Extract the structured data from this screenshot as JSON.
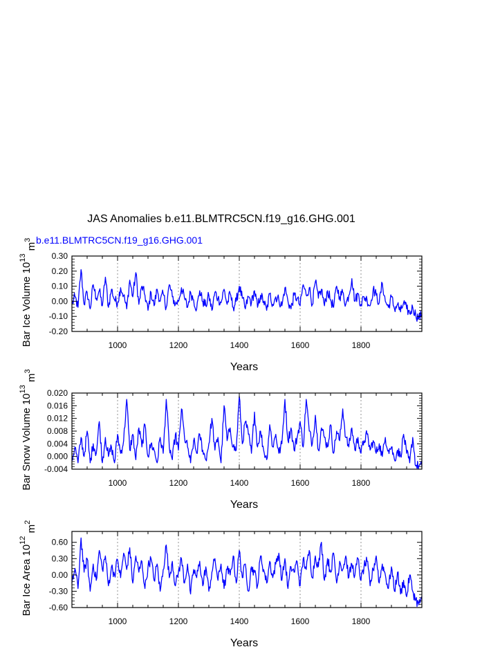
{
  "title": "JAS Anomalies b.e11.BLMTRC5CN.f19_g16.GHG.001",
  "chart_data": [
    {
      "type": "line",
      "series_label": "b.e11.BLMTRC5CN.f19_g16.GHG.001",
      "series_color": "#0000ff",
      "ylabel": "Bar Ice Volume 10",
      "ylabel_exp": "13",
      "ylabel_unit": "m",
      "ylabel_unit_exp": "3",
      "xlabel": "Years",
      "xlim": [
        850,
        2000
      ],
      "ylim": [
        -0.2,
        0.3
      ],
      "xticks": [
        1000,
        1200,
        1400,
        1600,
        1800
      ],
      "xtick_labels": [
        "1000",
        "1200",
        "1400",
        "1600",
        "1800"
      ],
      "yticks": [
        -0.2,
        -0.1,
        0.0,
        0.1,
        0.2,
        0.3
      ],
      "ytick_labels": [
        "-0.20",
        "-0.10",
        "0.00",
        "0.10",
        "0.20",
        "0.30"
      ],
      "grid": "dashed vertical at x ticks",
      "series": [
        {
          "x": [
            850,
            860,
            870,
            880,
            890,
            900,
            910,
            920,
            930,
            940,
            950,
            960,
            970,
            980,
            990,
            1000,
            1010,
            1020,
            1030,
            1040,
            1050,
            1060,
            1070,
            1080,
            1090,
            1100,
            1110,
            1120,
            1130,
            1140,
            1150,
            1160,
            1170,
            1180,
            1190,
            1200,
            1210,
            1220,
            1230,
            1240,
            1250,
            1260,
            1270,
            1280,
            1290,
            1300,
            1310,
            1320,
            1330,
            1340,
            1350,
            1360,
            1370,
            1380,
            1390,
            1400,
            1410,
            1420,
            1430,
            1440,
            1450,
            1460,
            1470,
            1480,
            1490,
            1500,
            1510,
            1520,
            1530,
            1540,
            1550,
            1560,
            1570,
            1580,
            1590,
            1600,
            1610,
            1620,
            1630,
            1640,
            1650,
            1660,
            1670,
            1680,
            1690,
            1700,
            1710,
            1720,
            1730,
            1740,
            1750,
            1760,
            1770,
            1780,
            1790,
            1800,
            1810,
            1820,
            1830,
            1840,
            1850,
            1860,
            1870,
            1880,
            1890,
            1900,
            1910,
            1920,
            1930,
            1940,
            1950,
            1960,
            1970,
            1980,
            1990,
            2000
          ],
          "y": [
            -0.02,
            0.03,
            -0.04,
            0.21,
            -0.02,
            0.06,
            -0.05,
            0.11,
            0.02,
            0.07,
            -0.03,
            0.16,
            -0.04,
            0.08,
            0.01,
            -0.01,
            0.09,
            0.04,
            -0.05,
            0.14,
            0.03,
            0.19,
            -0.02,
            0.1,
            0.04,
            -0.06,
            0.06,
            -0.03,
            0.08,
            0.0,
            0.05,
            -0.04,
            0.11,
            0.03,
            -0.02,
            0.0,
            0.09,
            0.02,
            -0.04,
            0.06,
            0.01,
            -0.05,
            0.07,
            0.0,
            -0.03,
            0.04,
            -0.06,
            0.06,
            0.02,
            -0.01,
            0.08,
            -0.02,
            0.05,
            -0.04,
            0.0,
            0.1,
            0.02,
            -0.05,
            0.03,
            -0.01,
            0.07,
            -0.04,
            0.04,
            0.0,
            -0.06,
            0.05,
            -0.02,
            0.03,
            0.01,
            -0.03,
            0.09,
            0.0,
            -0.05,
            0.04,
            0.02,
            -0.03,
            0.11,
            0.04,
            0.09,
            -0.02,
            0.13,
            0.02,
            0.08,
            -0.03,
            0.07,
            0.01,
            -0.04,
            0.1,
            0.03,
            0.06,
            -0.02,
            0.04,
            0.15,
            0.0,
            0.05,
            -0.02,
            0.03,
            0.01,
            -0.03,
            0.08,
            0.04,
            -0.01,
            0.12,
            0.0,
            -0.04,
            0.03,
            -0.05,
            -0.02,
            -0.07,
            -0.01,
            -0.05,
            -0.08,
            -0.04,
            -0.09,
            -0.11,
            -0.09
          ]
        }
      ]
    },
    {
      "type": "line",
      "series_color": "#0000ff",
      "ylabel": "Bar Snow Volume 10",
      "ylabel_exp": "13",
      "ylabel_unit": "m",
      "ylabel_unit_exp": "3",
      "xlabel": "Years",
      "xlim": [
        850,
        2000
      ],
      "ylim": [
        -0.004,
        0.02
      ],
      "xticks": [
        1000,
        1200,
        1400,
        1600,
        1800
      ],
      "xtick_labels": [
        "1000",
        "1200",
        "1400",
        "1600",
        "1800"
      ],
      "yticks": [
        -0.004,
        0.0,
        0.004,
        0.008,
        0.012,
        0.016,
        0.02
      ],
      "ytick_labels": [
        "-0.004",
        "0.000",
        "0.004",
        "0.008",
        "0.012",
        "0.016",
        "0.020"
      ],
      "grid": "dashed vertical at x ticks",
      "series": [
        {
          "x": [
            850,
            860,
            870,
            880,
            890,
            900,
            910,
            920,
            930,
            940,
            950,
            960,
            970,
            980,
            990,
            1000,
            1010,
            1020,
            1030,
            1040,
            1050,
            1060,
            1070,
            1080,
            1090,
            1100,
            1110,
            1120,
            1130,
            1140,
            1150,
            1160,
            1170,
            1180,
            1190,
            1200,
            1210,
            1220,
            1230,
            1240,
            1250,
            1260,
            1270,
            1280,
            1290,
            1300,
            1310,
            1320,
            1330,
            1340,
            1350,
            1360,
            1370,
            1380,
            1390,
            1400,
            1410,
            1420,
            1430,
            1440,
            1450,
            1460,
            1470,
            1480,
            1490,
            1500,
            1510,
            1520,
            1530,
            1540,
            1550,
            1560,
            1570,
            1580,
            1590,
            1600,
            1610,
            1620,
            1630,
            1640,
            1650,
            1660,
            1670,
            1680,
            1690,
            1700,
            1710,
            1720,
            1730,
            1740,
            1750,
            1760,
            1770,
            1780,
            1790,
            1800,
            1810,
            1820,
            1830,
            1840,
            1850,
            1860,
            1870,
            1880,
            1890,
            1900,
            1910,
            1920,
            1930,
            1940,
            1950,
            1960,
            1970,
            1980,
            1990,
            2000
          ],
          "y": [
            -0.001,
            0.003,
            -0.002,
            0.006,
            0.0,
            0.008,
            -0.002,
            0.004,
            0.001,
            0.011,
            -0.002,
            0.006,
            0.0,
            0.003,
            -0.002,
            0.007,
            0.001,
            0.005,
            0.018,
            0.002,
            0.007,
            -0.001,
            0.009,
            0.003,
            0.01,
            0.0,
            0.004,
            0.002,
            -0.002,
            0.006,
            0.001,
            0.018,
            0.003,
            -0.001,
            0.007,
            0.002,
            0.015,
            0.006,
            0.003,
            -0.002,
            0.005,
            0.001,
            0.007,
            0.002,
            -0.001,
            0.004,
            0.012,
            0.002,
            0.006,
            -0.002,
            0.016,
            0.005,
            0.009,
            0.003,
            0.002,
            0.019,
            0.004,
            0.011,
            0.007,
            0.001,
            0.014,
            0.003,
            0.008,
            0.002,
            -0.001,
            0.01,
            0.003,
            0.007,
            0.001,
            0.004,
            0.018,
            0.005,
            0.009,
            0.002,
            0.006,
            0.011,
            0.003,
            0.018,
            0.008,
            0.004,
            0.013,
            0.002,
            0.009,
            0.006,
            0.003,
            0.01,
            0.001,
            0.008,
            0.005,
            0.015,
            0.006,
            0.003,
            0.009,
            0.002,
            0.006,
            0.001,
            0.005,
            0.007,
            0.002,
            0.005,
            0.001,
            0.004,
            0.0,
            0.006,
            0.002,
            0.003,
            -0.001,
            0.002,
            0.0,
            0.007,
            0.001,
            -0.002,
            0.006,
            -0.003,
            -0.003,
            -0.003
          ]
        }
      ]
    },
    {
      "type": "line",
      "series_color": "#0000ff",
      "ylabel": "Bar Ice Area 10",
      "ylabel_exp": "12",
      "ylabel_unit": "m",
      "ylabel_unit_exp": "2",
      "xlabel": "Years",
      "xlim": [
        850,
        2000
      ],
      "ylim": [
        -0.6,
        0.8
      ],
      "xticks": [
        1000,
        1200,
        1400,
        1600,
        1800
      ],
      "xtick_labels": [
        "1000",
        "1200",
        "1400",
        "1600",
        "1800"
      ],
      "yticks": [
        -0.6,
        -0.3,
        0.0,
        0.3,
        0.6
      ],
      "ytick_labels": [
        "-0.60",
        "-0.30",
        "0.00",
        "0.30",
        "0.60"
      ],
      "grid": "dashed vertical at x ticks",
      "series": [
        {
          "x": [
            850,
            860,
            870,
            880,
            890,
            900,
            910,
            920,
            930,
            940,
            950,
            960,
            970,
            980,
            990,
            1000,
            1010,
            1020,
            1030,
            1040,
            1050,
            1060,
            1070,
            1080,
            1090,
            1100,
            1110,
            1120,
            1130,
            1140,
            1150,
            1160,
            1170,
            1180,
            1190,
            1200,
            1210,
            1220,
            1230,
            1240,
            1250,
            1260,
            1270,
            1280,
            1290,
            1300,
            1310,
            1320,
            1330,
            1340,
            1350,
            1360,
            1370,
            1380,
            1390,
            1400,
            1410,
            1420,
            1430,
            1440,
            1450,
            1460,
            1470,
            1480,
            1490,
            1500,
            1510,
            1520,
            1530,
            1540,
            1550,
            1560,
            1570,
            1580,
            1590,
            1600,
            1610,
            1620,
            1630,
            1640,
            1650,
            1660,
            1670,
            1680,
            1690,
            1700,
            1710,
            1720,
            1730,
            1740,
            1750,
            1760,
            1770,
            1780,
            1790,
            1800,
            1810,
            1820,
            1830,
            1840,
            1850,
            1860,
            1870,
            1880,
            1890,
            1900,
            1910,
            1920,
            1930,
            1940,
            1950,
            1960,
            1970,
            1980,
            1990,
            2000
          ],
          "y": [
            -0.15,
            0.12,
            -0.25,
            0.68,
            0.05,
            0.3,
            -0.3,
            0.2,
            -0.1,
            0.45,
            0.1,
            0.35,
            -0.2,
            0.15,
            0.0,
            0.28,
            -0.05,
            0.4,
            0.1,
            0.5,
            -0.15,
            0.35,
            0.05,
            0.25,
            -0.25,
            0.15,
            0.3,
            -0.1,
            0.2,
            -0.3,
            0.1,
            0.55,
            -0.05,
            0.25,
            -0.2,
            0.05,
            0.3,
            -0.15,
            0.2,
            -0.35,
            0.1,
            -0.05,
            0.25,
            -0.2,
            0.15,
            -0.3,
            0.05,
            0.3,
            -0.1,
            0.2,
            -0.25,
            0.1,
            0.0,
            0.35,
            -0.15,
            0.45,
            -0.05,
            0.2,
            -0.3,
            0.15,
            0.05,
            -0.2,
            0.35,
            0.1,
            -0.15,
            0.25,
            -0.05,
            0.2,
            0.4,
            -0.1,
            0.3,
            -0.25,
            0.15,
            0.05,
            0.25,
            -0.2,
            0.3,
            0.1,
            0.45,
            -0.05,
            0.35,
            0.15,
            0.6,
            -0.1,
            0.3,
            0.05,
            0.4,
            -0.15,
            0.25,
            0.1,
            0.35,
            -0.05,
            0.2,
            0.0,
            0.3,
            -0.1,
            0.15,
            0.25,
            -0.2,
            0.1,
            0.35,
            -0.15,
            0.2,
            0.0,
            -0.25,
            0.15,
            -0.3,
            0.05,
            -0.35,
            -0.1,
            -0.4,
            0.0,
            -0.3,
            -0.45,
            -0.55,
            -0.4
          ]
        }
      ]
    }
  ]
}
